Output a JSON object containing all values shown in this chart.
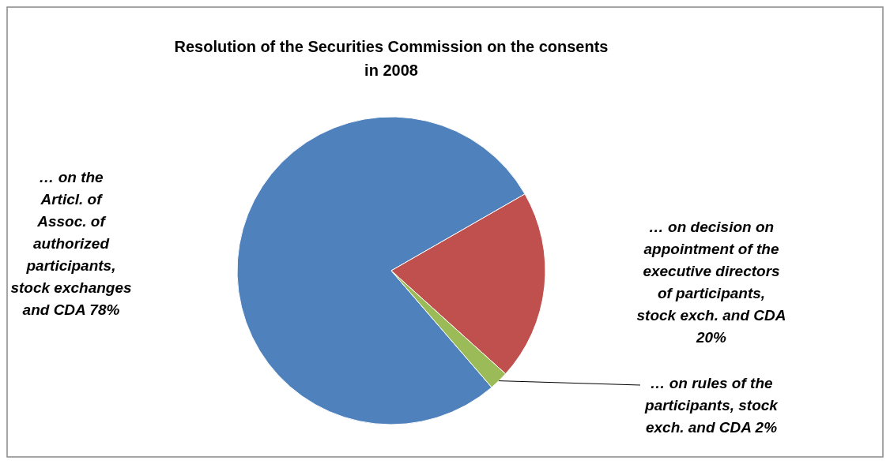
{
  "chart_data": {
    "type": "pie",
    "title": "Resolution of the Securities Commission on the consents in 2008",
    "categories": [
      "… on the Articl. of Assoc. of authorized participants, stock exchanges and CDA",
      "… on decision on appointment of the executive directors of participants, stock exch. and CDA",
      "… on rules of the participants, stock exch. and CDA"
    ],
    "values": [
      78,
      20,
      2
    ],
    "colors": [
      "#4f81bd",
      "#c0504d",
      "#9bbb59"
    ],
    "value_labels": [
      "78%",
      "20%",
      "2%"
    ]
  }
}
